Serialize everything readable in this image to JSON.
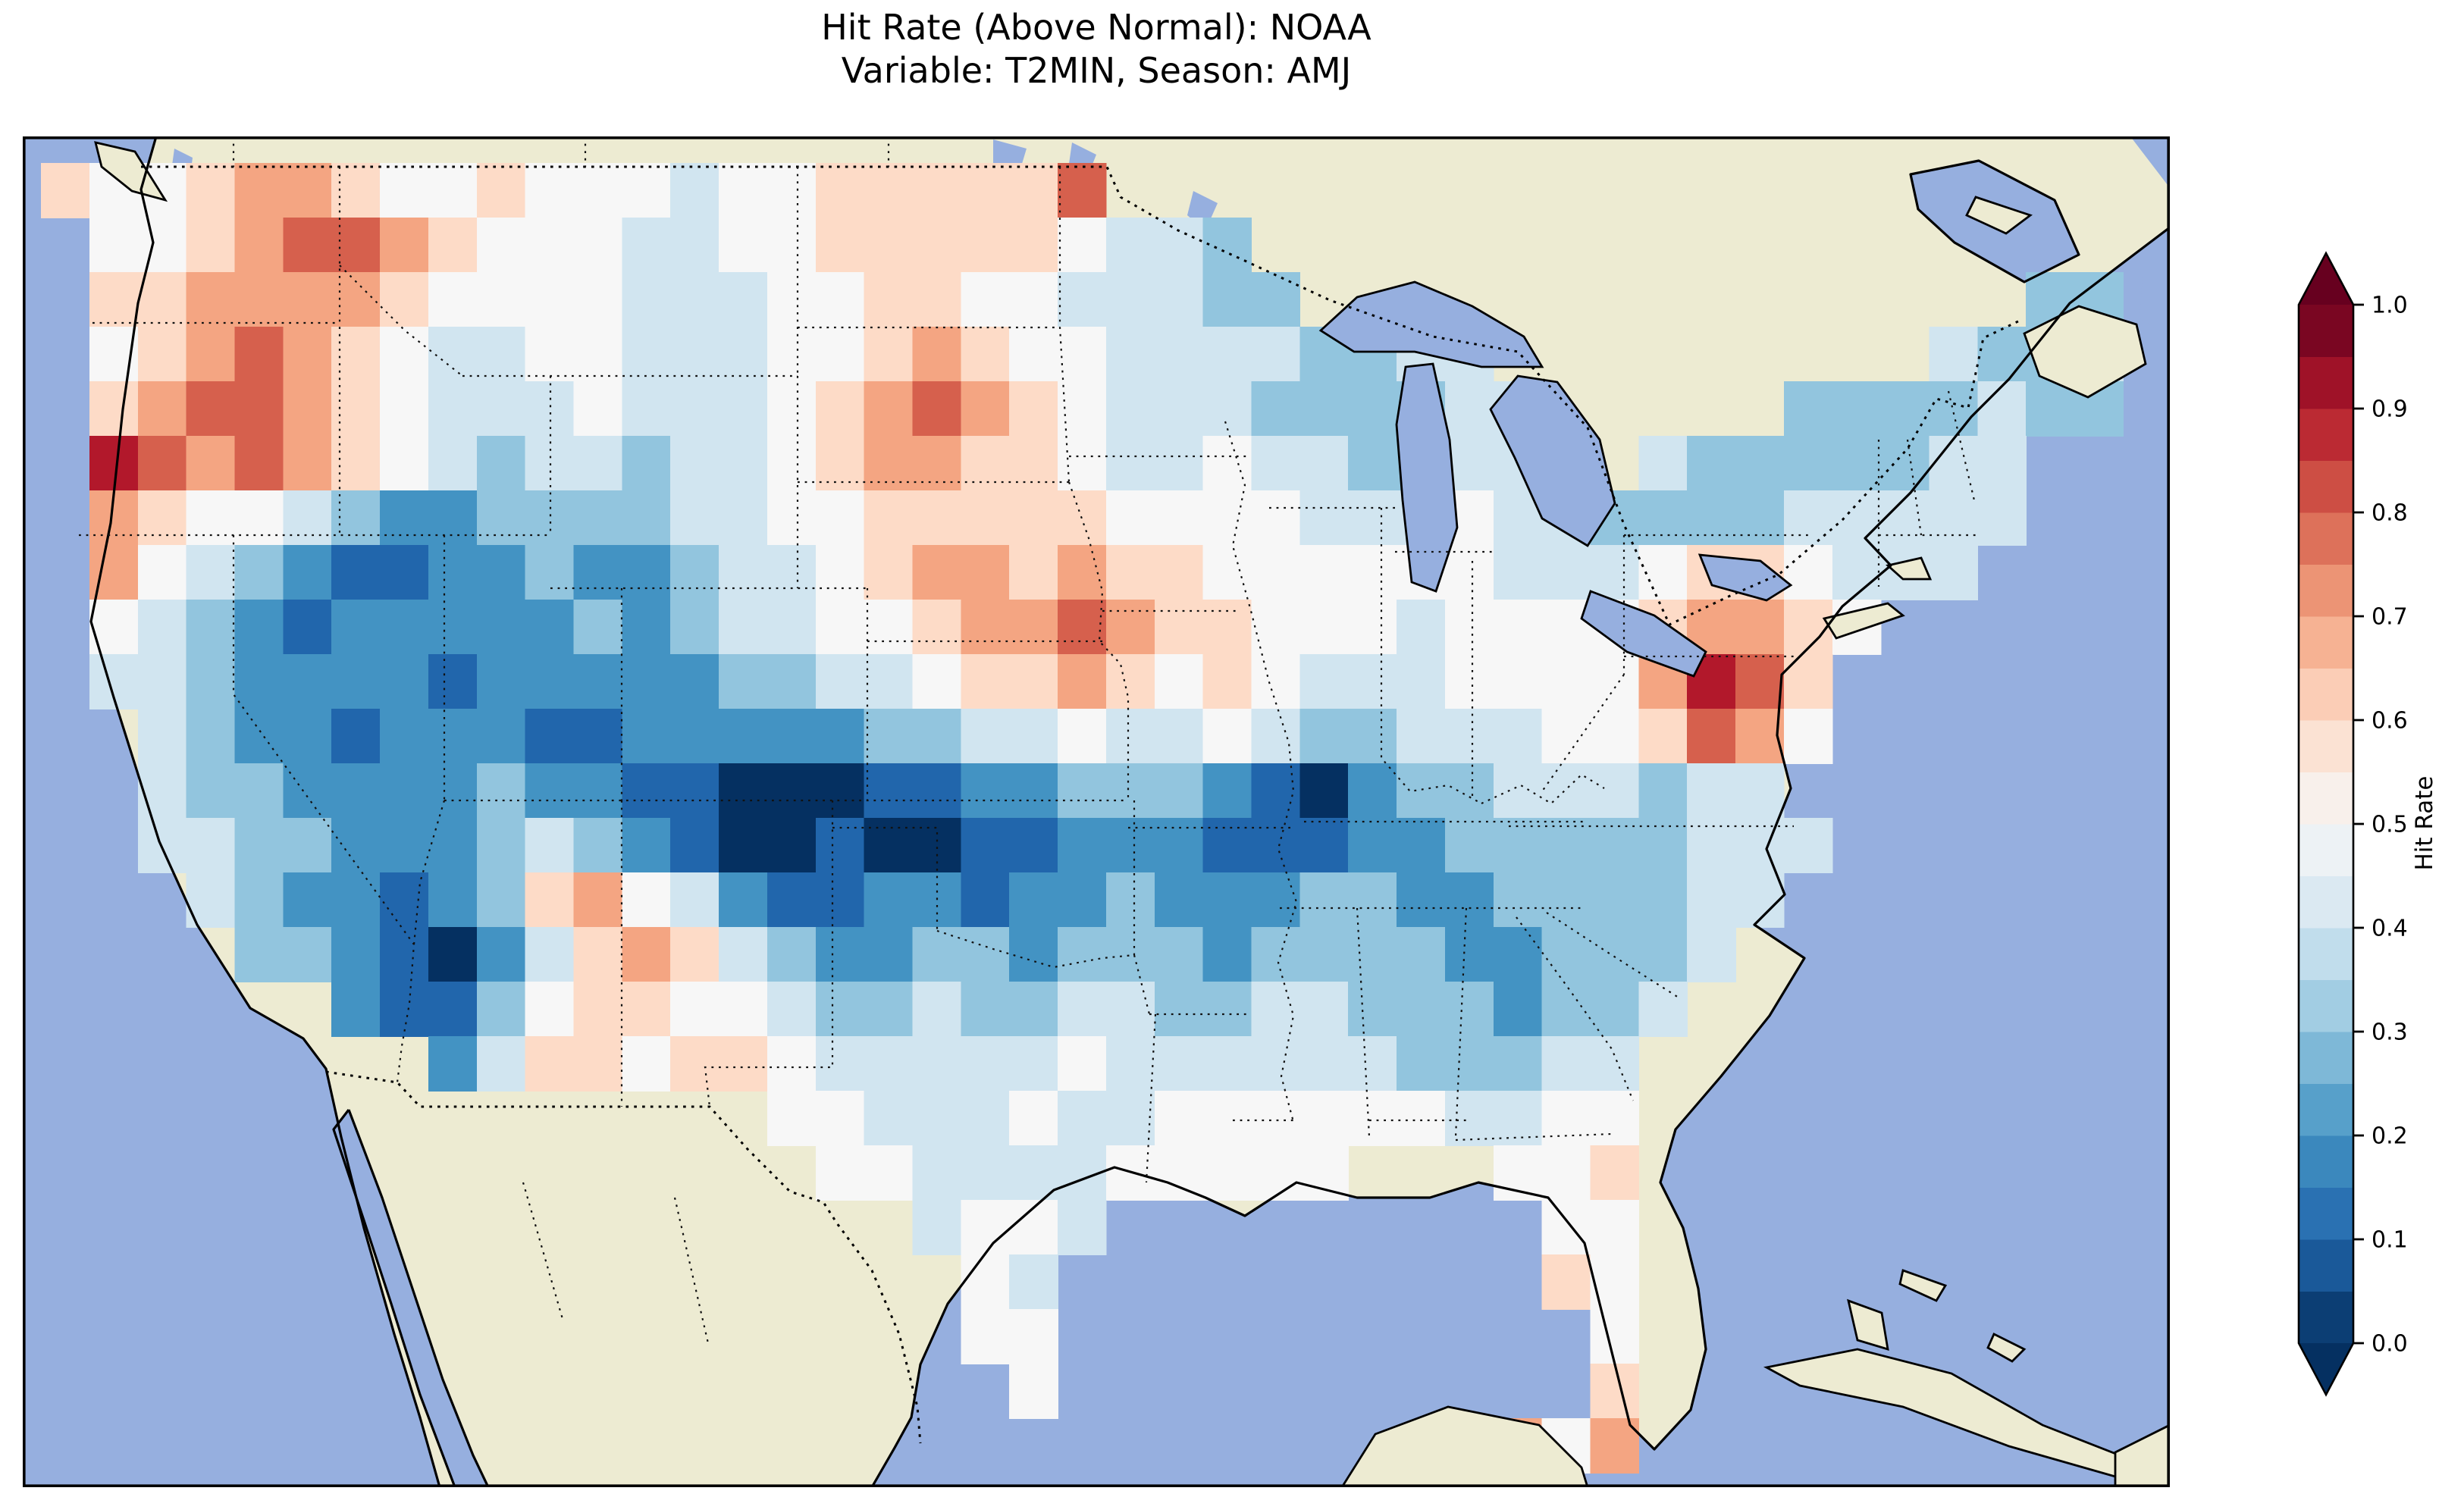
{
  "figure": {
    "title_line1": "Hit Rate (Above Normal): NOAA",
    "title_line2": "Variable: T2MIN, Season: AMJ"
  },
  "colorbar": {
    "label": "Hit Rate",
    "ticks": [
      "0.0",
      "0.1",
      "0.2",
      "0.3",
      "0.4",
      "0.5",
      "0.6",
      "0.7",
      "0.8",
      "0.9",
      "1.0"
    ],
    "level_colors": [
      "#0c3e74",
      "#1a5999",
      "#2a71b2",
      "#3b88bd",
      "#57a0ca",
      "#7eb8d7",
      "#a2cde3",
      "#c1ddec",
      "#dbe9f2",
      "#edf2f5",
      "#f8f0eb",
      "#fbe2d3",
      "#fbcdb6",
      "#f6b293",
      "#ec9475",
      "#dd715a",
      "#cd4e44",
      "#bb2a33",
      "#9f1228",
      "#7a0622"
    ],
    "extend_under_color": "#053061",
    "extend_over_color": "#67001f"
  },
  "map": {
    "ocean_color": "#96afdf",
    "land_color": "#edebd2",
    "coastline_color": "#000000"
  },
  "chart_data": {
    "type": "heatmap",
    "title": "Hit Rate (Above Normal): NOAA",
    "subtitle": "Variable: T2MIN, Season: AMJ",
    "metric": "Hit Rate (Above Normal)",
    "source_label": "NOAA",
    "variable": "T2MIN",
    "season": "AMJ",
    "region_shown": "Contiguous United States",
    "colorbar_label": "Hit Rate",
    "colorbar_ticks": [
      0.0,
      0.1,
      0.2,
      0.3,
      0.4,
      0.5,
      0.6,
      0.7,
      0.8,
      0.9,
      1.0
    ],
    "colorbar_range": [
      0.0,
      1.0
    ],
    "colormap_stops": [
      {
        "value": 0.0,
        "color": "#053061"
      },
      {
        "value": 0.1,
        "color": "#2166ac"
      },
      {
        "value": 0.2,
        "color": "#4393c3"
      },
      {
        "value": 0.3,
        "color": "#92c5de"
      },
      {
        "value": 0.4,
        "color": "#d1e5f0"
      },
      {
        "value": 0.5,
        "color": "#f7f7f7"
      },
      {
        "value": 0.6,
        "color": "#fddbc7"
      },
      {
        "value": 0.7,
        "color": "#f4a582"
      },
      {
        "value": 0.8,
        "color": "#d6604d"
      },
      {
        "value": 0.9,
        "color": "#b2182b"
      },
      {
        "value": 1.0,
        "color": "#67001f"
      }
    ],
    "grid": {
      "rows": 24,
      "cols": 44,
      "cell_encoding": "each character is one grid cell, west-to-east per row, north-to-south rows; digit d means hit rate = d/10; '.' means no data (outside CONUS)",
      "cells": [
        "6556776556555455666668......................",
        ".556788765554455666665443...................",
        ".6677776555544455665544433...............33.",
        ".56787654455444556765544443344.........4334.",
        ".678876544454445678765444333344.....3333433.",
        ".9878765434434456776654454433444.43333344...",
        ".7655432233334455666665555444544333344444...",
        ".754321122322344567767665555554445665444....",
        ".5432122222323445567787665554555567765......",
        ".443222212222233445667656544455557986.......",
        "..43221222112222233445445433444556875.......",
        "..4332222322110001122333210233444344........",
        "..44332223432100100112221112233333444.......",
        "...432212367542112212232223322333344........",
        "....3321024676432233233323333223334.........",
        "......2113566554334334433443332334..........",
        "........2466566544444544444433344...........",
        "...............554445445555554455...........",
        "................55444455555...556...........",
        "..................4554.........55...........",
        "...................54..........65...........",
        "...................55...........5...........",
        "....................5...........6...........",
        "..............................757..........."
      ]
    }
  }
}
